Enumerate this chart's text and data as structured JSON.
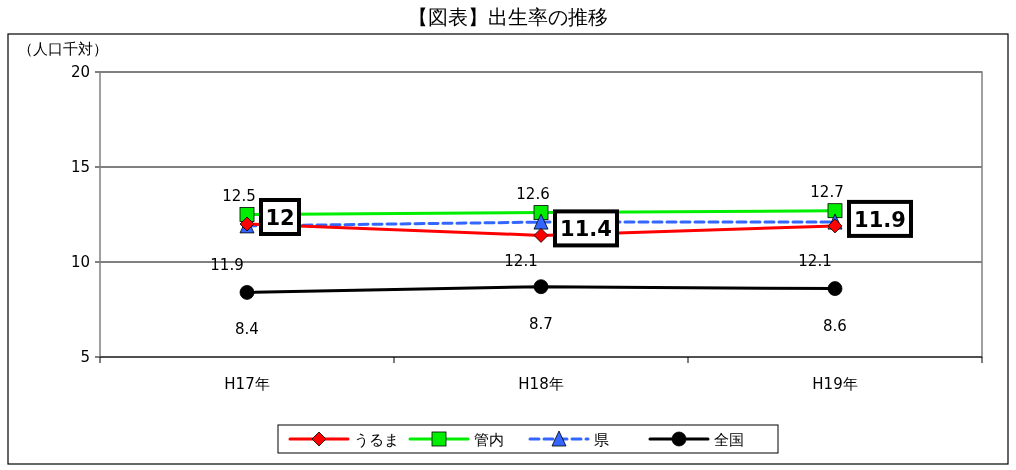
{
  "chart_data": {
    "type": "line",
    "title": "【図表】出生率の推移",
    "ylabel": "（人口千対）",
    "categories": [
      "H17年",
      "H18年",
      "H19年"
    ],
    "series": [
      {
        "name": "うるま",
        "color": "#ff0000",
        "marker": "diamond",
        "line_style": "solid",
        "values": [
          12,
          11.4,
          11.9
        ]
      },
      {
        "name": "管内",
        "color": "#00ee00",
        "marker": "square",
        "line_style": "solid",
        "values": [
          12.5,
          12.6,
          12.7
        ]
      },
      {
        "name": "県",
        "color": "#3366ff",
        "marker": "triangle",
        "line_style": "dashed",
        "values": [
          11.9,
          12.1,
          12.1
        ]
      },
      {
        "name": "全国",
        "color": "#000000",
        "marker": "circle",
        "line_style": "solid",
        "values": [
          8.4,
          8.7,
          8.6
        ]
      }
    ],
    "ylim": [
      5,
      20
    ],
    "yticks": [
      5,
      10,
      15,
      20
    ],
    "grid": "y",
    "legend": "bottom",
    "data_labels": true
  }
}
